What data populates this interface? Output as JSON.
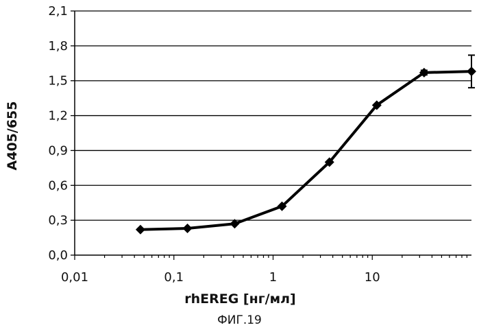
{
  "chart_data": {
    "type": "line",
    "xscale": "log",
    "xlim": [
      0.01,
      100
    ],
    "ylim": [
      0.0,
      2.1
    ],
    "xticks": [
      "0,01",
      "0,1",
      "1",
      "10"
    ],
    "xtick_values": [
      0.01,
      0.1,
      1,
      10
    ],
    "yticks": [
      "0,0",
      "0,3",
      "0,6",
      "0,9",
      "1,2",
      "1,5",
      "1,8",
      "2,1"
    ],
    "ytick_values": [
      0.0,
      0.3,
      0.6,
      0.9,
      1.2,
      1.5,
      1.8,
      2.1
    ],
    "xlabel": "rhEREG [нг/мл]",
    "ylabel": "A405/655",
    "grid": "horizontal",
    "marker": "diamond",
    "series": [
      {
        "x": [
          0.046,
          0.137,
          0.41,
          1.23,
          3.7,
          11.1,
          33.3,
          100
        ],
        "y": [
          0.22,
          0.23,
          0.27,
          0.42,
          0.8,
          1.29,
          1.57,
          1.58
        ],
        "error": [
          0,
          0,
          0,
          0,
          0,
          0,
          0.02,
          0.14
        ]
      }
    ]
  },
  "caption": "ФИГ.19"
}
